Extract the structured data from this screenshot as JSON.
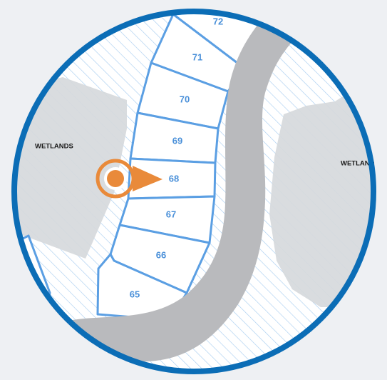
{
  "map": {
    "lots": [
      {
        "id": "lot-72",
        "label": "72"
      },
      {
        "id": "lot-71",
        "label": "71"
      },
      {
        "id": "lot-70",
        "label": "70"
      },
      {
        "id": "lot-69",
        "label": "69"
      },
      {
        "id": "lot-68",
        "label": "68",
        "selected": true
      },
      {
        "id": "lot-67",
        "label": "67"
      },
      {
        "id": "lot-66",
        "label": "66"
      },
      {
        "id": "lot-65",
        "label": "65"
      }
    ],
    "areas": {
      "wetlands_left": "WETLANDS",
      "wetlands_right": "WETLAND"
    },
    "marker": {
      "icon": "location-pin-icon",
      "points_to_lot": "68"
    },
    "colors": {
      "frame": "#0b6db6",
      "lot_stroke": "#5b9fe3",
      "lot_label": "#4a90d9",
      "road": "#b9babd",
      "wetland_fill": "#d6d9dc",
      "hatch": "#9dc7ef",
      "marker": "#e98a3a",
      "background": "#eef0f3"
    }
  }
}
